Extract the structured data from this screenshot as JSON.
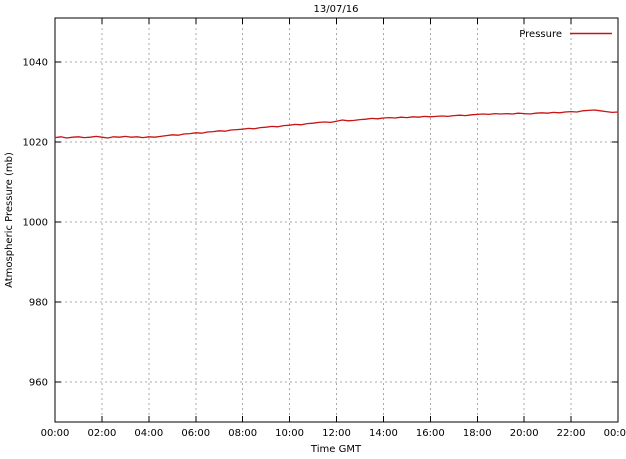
{
  "chart_data": {
    "type": "line",
    "title": "13/07/16",
    "xlabel": "Time GMT",
    "ylabel": "Atmospheric Pressure (mb)",
    "grid": true,
    "legend_position": "top-right-inside",
    "x_tick_labels": [
      "00:00",
      "02:00",
      "04:00",
      "06:00",
      "08:00",
      "10:00",
      "12:00",
      "14:00",
      "16:00",
      "18:00",
      "20:00",
      "22:00",
      "00:00"
    ],
    "x_tick_hours": [
      0,
      2,
      4,
      6,
      8,
      10,
      12,
      14,
      16,
      18,
      20,
      22,
      24
    ],
    "y_ticks": [
      960,
      980,
      1000,
      1020,
      1040
    ],
    "xlim_hours": [
      0,
      24
    ],
    "ylim": [
      950,
      1051
    ],
    "colors": {
      "series_red": "#c81414",
      "grid_gray": "#a8a8a8",
      "axis_black": "#000000"
    },
    "series": [
      {
        "name": "Pressure",
        "color": "#c81414",
        "x_hours": [
          0,
          0.25,
          0.5,
          0.75,
          1,
          1.25,
          1.5,
          1.75,
          2,
          2.25,
          2.5,
          2.75,
          3,
          3.25,
          3.5,
          3.75,
          4,
          4.25,
          4.5,
          4.75,
          5,
          5.25,
          5.5,
          5.75,
          6,
          6.25,
          6.5,
          6.75,
          7,
          7.25,
          7.5,
          7.75,
          8,
          8.25,
          8.5,
          8.75,
          9,
          9.25,
          9.5,
          9.75,
          10,
          10.25,
          10.5,
          10.75,
          11,
          11.25,
          11.5,
          11.75,
          12,
          12.25,
          12.5,
          12.75,
          13,
          13.25,
          13.5,
          13.75,
          14,
          14.25,
          14.5,
          14.75,
          15,
          15.25,
          15.5,
          15.75,
          16,
          16.25,
          16.5,
          16.75,
          17,
          17.25,
          17.5,
          17.75,
          18,
          18.25,
          18.5,
          18.75,
          19,
          19.25,
          19.5,
          19.75,
          20,
          20.25,
          20.5,
          20.75,
          21,
          21.25,
          21.5,
          21.75,
          22,
          22.25,
          22.5,
          22.75,
          23,
          23.25,
          23.5,
          23.75,
          24
        ],
        "values": [
          1021.1,
          1021.3,
          1021.0,
          1021.2,
          1021.3,
          1021.1,
          1021.2,
          1021.4,
          1021.2,
          1021.0,
          1021.3,
          1021.2,
          1021.4,
          1021.2,
          1021.3,
          1021.1,
          1021.3,
          1021.2,
          1021.4,
          1021.6,
          1021.8,
          1021.7,
          1022.0,
          1022.1,
          1022.3,
          1022.2,
          1022.5,
          1022.6,
          1022.8,
          1022.7,
          1023.0,
          1023.1,
          1023.2,
          1023.4,
          1023.3,
          1023.6,
          1023.7,
          1023.9,
          1023.8,
          1024.1,
          1024.2,
          1024.4,
          1024.3,
          1024.6,
          1024.7,
          1024.9,
          1025.0,
          1024.9,
          1025.2,
          1025.5,
          1025.3,
          1025.4,
          1025.6,
          1025.7,
          1025.9,
          1025.8,
          1026.0,
          1026.1,
          1026.0,
          1026.2,
          1026.1,
          1026.3,
          1026.2,
          1026.4,
          1026.3,
          1026.4,
          1026.5,
          1026.4,
          1026.6,
          1026.7,
          1026.6,
          1026.8,
          1026.9,
          1027.0,
          1026.9,
          1027.1,
          1027.0,
          1027.1,
          1027.0,
          1027.2,
          1027.1,
          1027.0,
          1027.2,
          1027.3,
          1027.2,
          1027.4,
          1027.3,
          1027.5,
          1027.6,
          1027.5,
          1027.8,
          1027.9,
          1028.0,
          1027.8,
          1027.6,
          1027.4,
          1027.5
        ]
      }
    ]
  }
}
